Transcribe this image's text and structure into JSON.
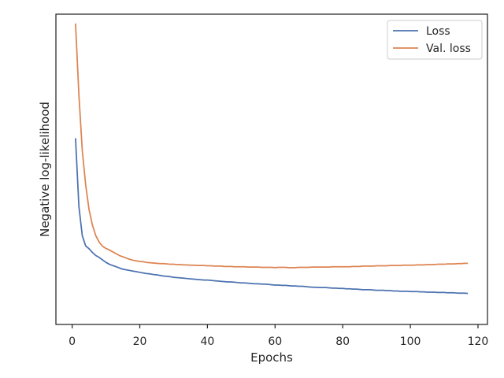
{
  "chart_data": {
    "type": "line",
    "title": "",
    "xlabel": "Epochs",
    "ylabel": "Negative log-likelihood",
    "xlim": [
      -4.8,
      122.8
    ],
    "ylim": [
      0,
      1
    ],
    "x_ticks": [
      0,
      20,
      40,
      60,
      80,
      100,
      120
    ],
    "y_ticks": [],
    "y_scale_note": "",
    "grid": false,
    "legend": "top-right",
    "x": [
      1,
      2,
      3,
      4,
      5,
      6,
      7,
      8,
      9,
      10,
      11,
      12,
      13,
      14,
      15,
      16,
      17,
      18,
      19,
      20,
      21,
      22,
      23,
      24,
      25,
      26,
      27,
      28,
      29,
      30,
      31,
      32,
      33,
      34,
      35,
      36,
      37,
      38,
      39,
      40,
      41,
      42,
      43,
      44,
      45,
      46,
      47,
      48,
      49,
      50,
      51,
      52,
      53,
      54,
      55,
      56,
      57,
      58,
      59,
      60,
      61,
      62,
      63,
      64,
      65,
      66,
      67,
      68,
      69,
      70,
      71,
      72,
      73,
      74,
      75,
      76,
      77,
      78,
      79,
      80,
      81,
      82,
      83,
      84,
      85,
      86,
      87,
      88,
      89,
      90,
      91,
      92,
      93,
      94,
      95,
      96,
      97,
      98,
      99,
      100,
      101,
      102,
      103,
      104,
      105,
      106,
      107,
      108,
      109,
      110,
      111,
      112,
      113,
      114,
      115,
      116,
      117
    ],
    "series": [
      {
        "name": "Loss",
        "color": "#4c72b0",
        "values": [
          0.6,
          0.38,
          0.286,
          0.253,
          0.244,
          0.232,
          0.222,
          0.216,
          0.208,
          0.2,
          0.194,
          0.19,
          0.186,
          0.182,
          0.178,
          0.176,
          0.174,
          0.172,
          0.17,
          0.168,
          0.166,
          0.164,
          0.163,
          0.161,
          0.16,
          0.158,
          0.156,
          0.155,
          0.154,
          0.152,
          0.151,
          0.15,
          0.149,
          0.148,
          0.147,
          0.146,
          0.145,
          0.144,
          0.143,
          0.143,
          0.142,
          0.141,
          0.14,
          0.139,
          0.138,
          0.137,
          0.137,
          0.136,
          0.135,
          0.134,
          0.134,
          0.133,
          0.132,
          0.131,
          0.131,
          0.13,
          0.13,
          0.129,
          0.128,
          0.127,
          0.127,
          0.126,
          0.126,
          0.125,
          0.124,
          0.124,
          0.123,
          0.123,
          0.122,
          0.121,
          0.12,
          0.12,
          0.119,
          0.119,
          0.119,
          0.118,
          0.117,
          0.117,
          0.116,
          0.116,
          0.115,
          0.115,
          0.114,
          0.114,
          0.113,
          0.112,
          0.112,
          0.112,
          0.111,
          0.11,
          0.11,
          0.11,
          0.109,
          0.109,
          0.108,
          0.108,
          0.107,
          0.107,
          0.107,
          0.106,
          0.106,
          0.106,
          0.105,
          0.105,
          0.104,
          0.104,
          0.104,
          0.103,
          0.103,
          0.103,
          0.102,
          0.102,
          0.102,
          0.101,
          0.101,
          0.101,
          0.1
        ]
      },
      {
        "name": "Val. loss",
        "color": "#dd8452",
        "values": [
          0.97,
          0.74,
          0.56,
          0.45,
          0.37,
          0.32,
          0.286,
          0.265,
          0.252,
          0.245,
          0.24,
          0.234,
          0.228,
          0.222,
          0.218,
          0.214,
          0.21,
          0.207,
          0.205,
          0.203,
          0.202,
          0.2,
          0.199,
          0.198,
          0.197,
          0.196,
          0.196,
          0.195,
          0.194,
          0.194,
          0.193,
          0.193,
          0.192,
          0.192,
          0.191,
          0.191,
          0.19,
          0.19,
          0.19,
          0.189,
          0.189,
          0.188,
          0.188,
          0.188,
          0.187,
          0.187,
          0.187,
          0.186,
          0.186,
          0.186,
          0.186,
          0.185,
          0.185,
          0.185,
          0.185,
          0.184,
          0.184,
          0.184,
          0.184,
          0.183,
          0.184,
          0.184,
          0.184,
          0.183,
          0.183,
          0.183,
          0.184,
          0.184,
          0.184,
          0.184,
          0.185,
          0.185,
          0.185,
          0.185,
          0.185,
          0.185,
          0.186,
          0.186,
          0.186,
          0.186,
          0.186,
          0.186,
          0.187,
          0.187,
          0.187,
          0.188,
          0.188,
          0.188,
          0.188,
          0.189,
          0.189,
          0.189,
          0.189,
          0.19,
          0.19,
          0.19,
          0.19,
          0.191,
          0.191,
          0.191,
          0.191,
          0.192,
          0.192,
          0.192,
          0.193,
          0.193,
          0.193,
          0.194,
          0.194,
          0.194,
          0.195,
          0.195,
          0.195,
          0.196,
          0.196,
          0.197,
          0.197
        ]
      }
    ]
  }
}
